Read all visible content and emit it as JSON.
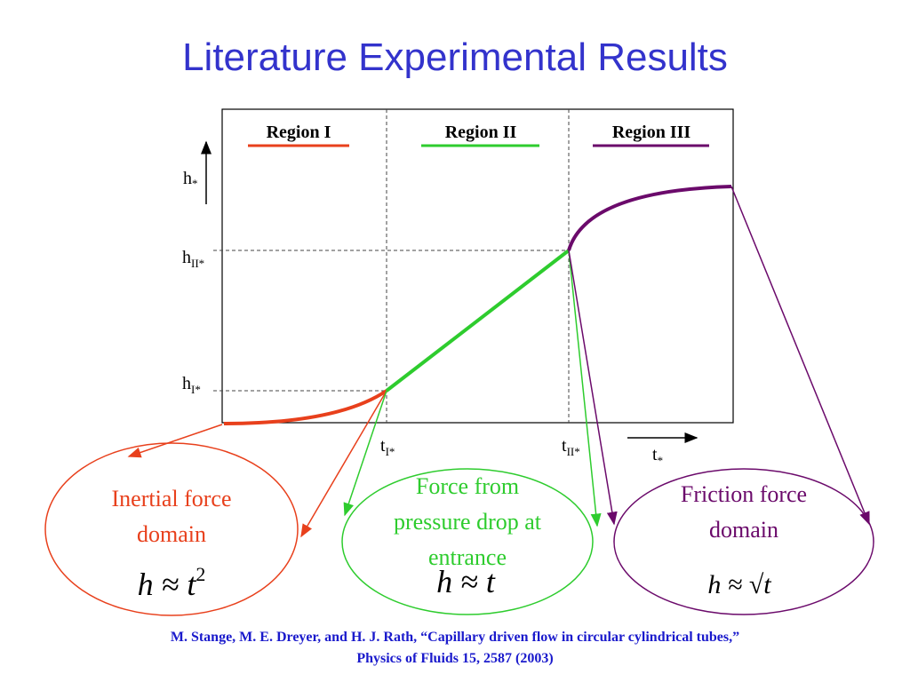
{
  "title": "Literature Experimental Results",
  "regions": [
    {
      "label": "Region I",
      "color": "#e8401c"
    },
    {
      "label": "Region II",
      "color": "#2ecc2e"
    },
    {
      "label": "Region III",
      "color": "#6b0a6b"
    }
  ],
  "axes": {
    "y_label": "h",
    "y_sub": "*",
    "x_label": "t",
    "x_sub": "*",
    "y_ticks": [
      {
        "main": "h",
        "sub": "II*"
      },
      {
        "main": "h",
        "sub": "I*"
      }
    ],
    "x_ticks": [
      {
        "main": "t",
        "sub": "I*"
      },
      {
        "main": "t",
        "sub": "II*"
      }
    ]
  },
  "domains": [
    {
      "line1": "Inertial force",
      "line2": "domain",
      "line3": "",
      "formula_base": "h ≈ t",
      "formula_exp": "2",
      "color": "#e8401c"
    },
    {
      "line1": "Force from",
      "line2": "pressure drop at",
      "line3": "entrance",
      "formula_base": "h ≈ t",
      "formula_exp": "",
      "color": "#2ecc2e"
    },
    {
      "line1": "Friction force",
      "line2": "domain",
      "line3": "",
      "formula_base": "h ≈ √t",
      "formula_exp": "",
      "color": "#6b0a6b"
    }
  ],
  "citation": {
    "line1": "M. Stange, M. E. Dreyer, and H. J. Rath, “Capillary driven flow in circular cylindrical tubes,”",
    "line2": "Physics of Fluids 15, 2587 (2003)"
  }
}
